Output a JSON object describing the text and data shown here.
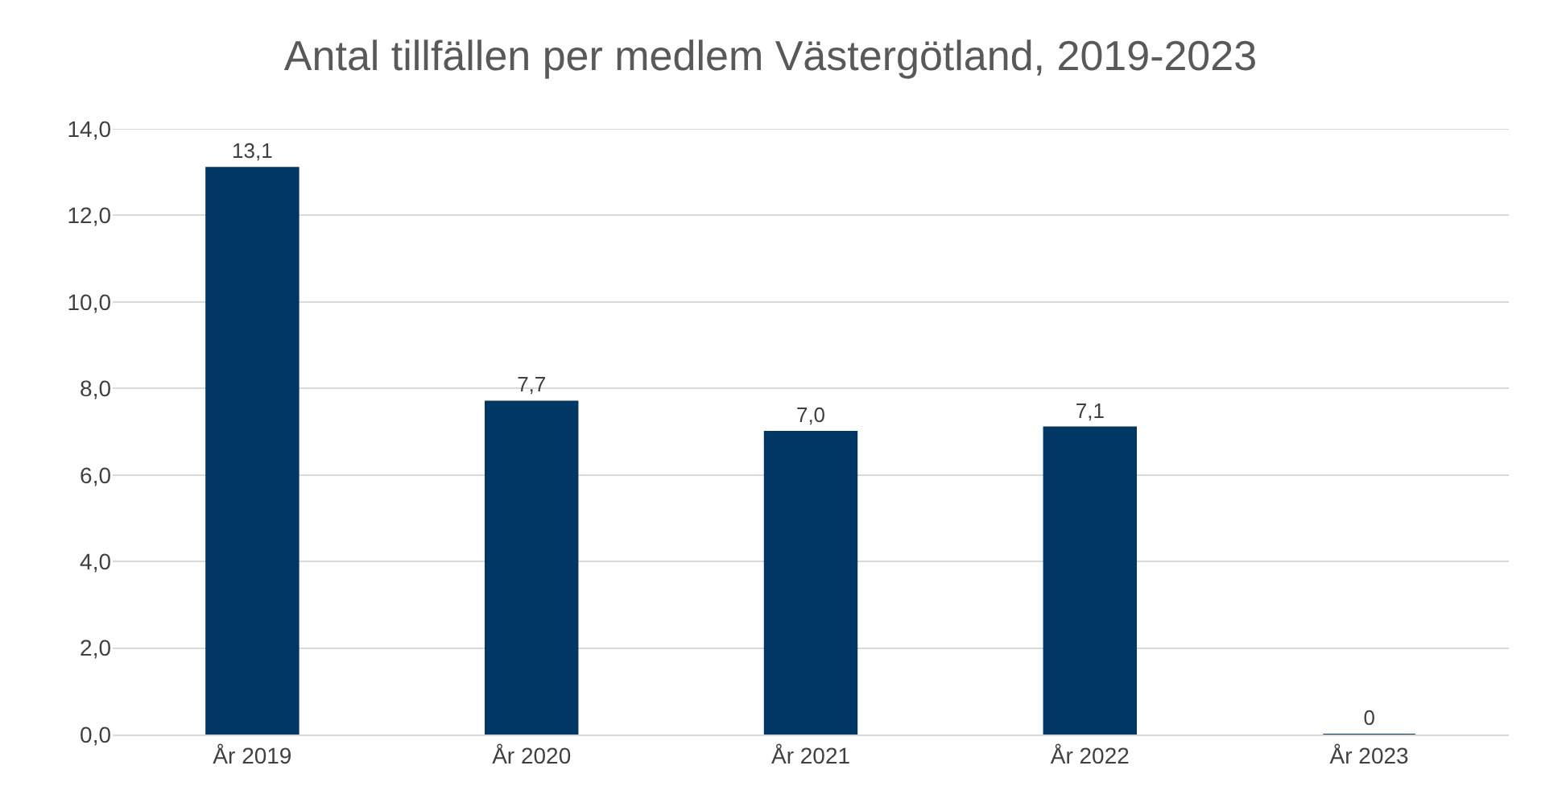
{
  "chart_data": {
    "type": "bar",
    "title": "Antal tillfällen per medlem Västergötland, 2019-2023",
    "categories": [
      "År 2019",
      "År 2020",
      "År 2021",
      "År 2022",
      "År 2023"
    ],
    "values": [
      13.1,
      7.7,
      7.0,
      7.1,
      0
    ],
    "value_labels": [
      "13,1",
      "7,7",
      "7,0",
      "7,1",
      "0"
    ],
    "color": "#003764",
    "ylim": [
      0,
      14
    ],
    "yticks": [
      {
        "value": 0,
        "label": "0,0"
      },
      {
        "value": 2,
        "label": "2,0"
      },
      {
        "value": 4,
        "label": "4,0"
      },
      {
        "value": 6,
        "label": "6,0"
      },
      {
        "value": 8,
        "label": "8,0"
      },
      {
        "value": 10,
        "label": "10,0"
      },
      {
        "value": 12,
        "label": "12,0"
      },
      {
        "value": 14,
        "label": "14,0"
      }
    ],
    "grid": "y",
    "legend": false
  }
}
